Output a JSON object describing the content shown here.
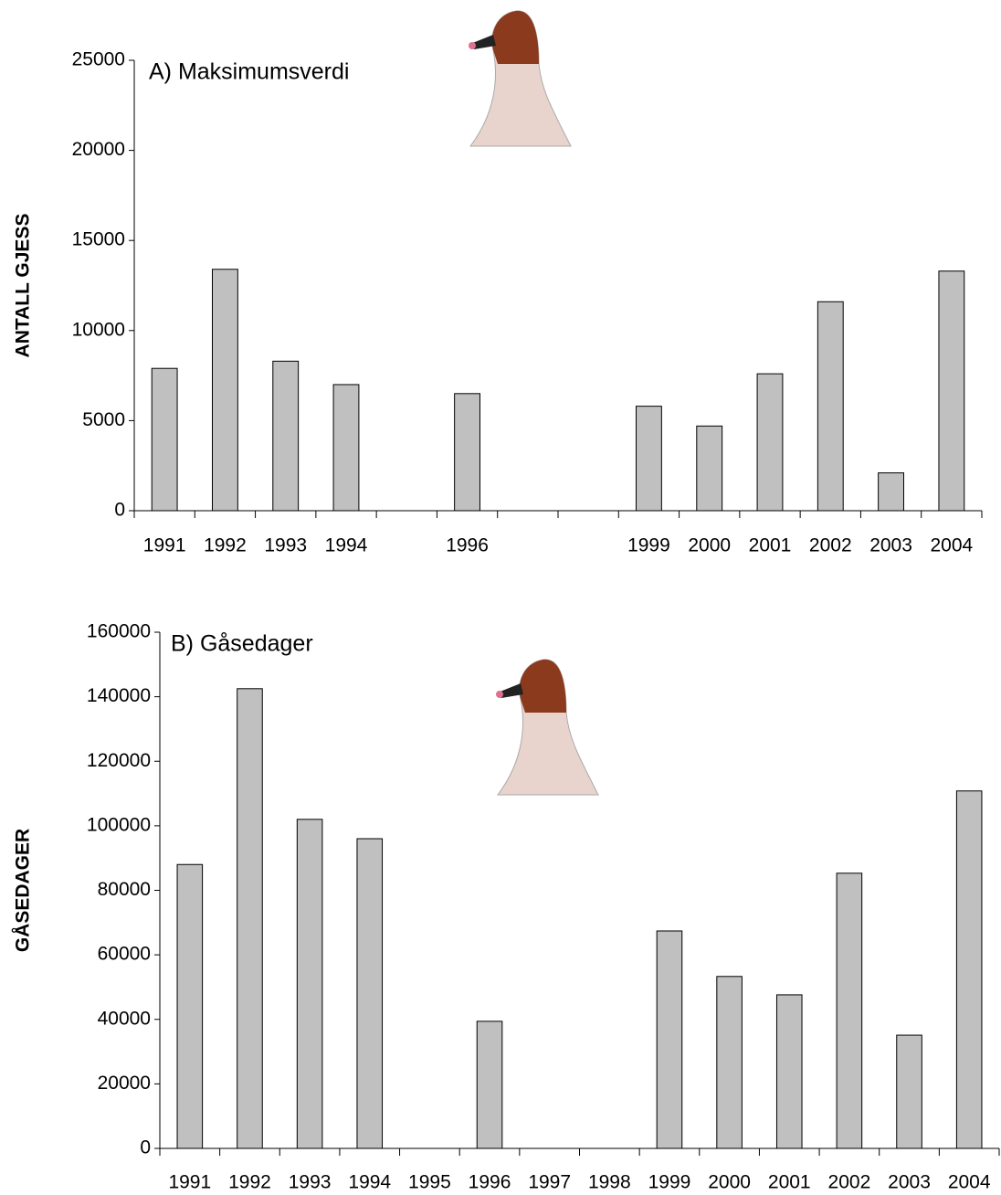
{
  "chart_data": [
    {
      "type": "bar",
      "title": "A) Maksimumsverdi",
      "y_label": "ANTALL GJESS",
      "categories": [
        "1991",
        "1992",
        "1993",
        "1994",
        null,
        "1996",
        null,
        null,
        "1999",
        "2000",
        "2001",
        "2002",
        "2003",
        "2004"
      ],
      "values": [
        7900,
        13400,
        8300,
        7000,
        null,
        6500,
        null,
        null,
        5800,
        4700,
        7600,
        11600,
        2100,
        13300
      ],
      "color": "#c0c0c0",
      "ylim": [
        0,
        25000
      ],
      "yticks": [
        0,
        5000,
        10000,
        15000,
        20000,
        25000
      ],
      "grid": false
    },
    {
      "type": "bar",
      "title": "B) Gåsedager",
      "y_label": "GÅSEDAGER",
      "categories": [
        "1991",
        "1992",
        "1993",
        "1994",
        "1995",
        "1996",
        "1997",
        "1998",
        "1999",
        "2000",
        "2001",
        "2002",
        "2003",
        "2004"
      ],
      "values": [
        88000,
        142500,
        102000,
        96000,
        null,
        39400,
        null,
        null,
        67400,
        53300,
        47600,
        85300,
        35100,
        110800
      ],
      "color": "#c0c0c0",
      "ylim": [
        0,
        160000
      ],
      "yticks": [
        0,
        20000,
        40000,
        60000,
        80000,
        100000,
        120000,
        140000,
        160000
      ],
      "grid": false
    }
  ]
}
